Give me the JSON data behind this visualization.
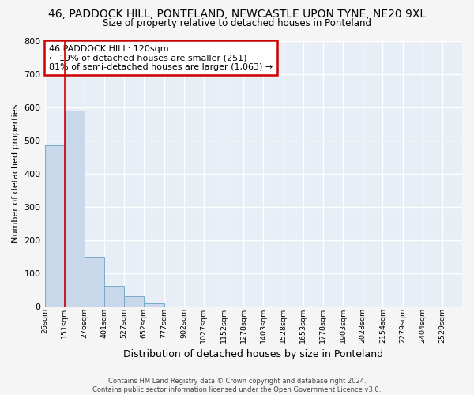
{
  "title_line1": "46, PADDOCK HILL, PONTELAND, NEWCASTLE UPON TYNE, NE20 9XL",
  "title_line2": "Size of property relative to detached houses in Ponteland",
  "xlabel": "Distribution of detached houses by size in Ponteland",
  "ylabel": "Number of detached properties",
  "bar_color": "#c8d8ea",
  "bar_edge_color": "#7aaac8",
  "background_color": "#e8eef6",
  "grid_color": "#ffffff",
  "fig_bg_color": "#f5f5f5",
  "categories": [
    "26sqm",
    "151sqm",
    "276sqm",
    "401sqm",
    "527sqm",
    "652sqm",
    "777sqm",
    "902sqm",
    "1027sqm",
    "1152sqm",
    "1278sqm",
    "1403sqm",
    "1528sqm",
    "1653sqm",
    "1778sqm",
    "1903sqm",
    "2028sqm",
    "2154sqm",
    "2279sqm",
    "2404sqm",
    "2529sqm"
  ],
  "values": [
    485,
    590,
    150,
    62,
    30,
    10,
    0,
    0,
    0,
    0,
    0,
    0,
    0,
    0,
    0,
    0,
    0,
    0,
    0,
    0,
    0
  ],
  "ylim": [
    0,
    800
  ],
  "yticks": [
    0,
    100,
    200,
    300,
    400,
    500,
    600,
    700,
    800
  ],
  "property_line_x": 1,
  "property_line_color": "#cc0000",
  "annotation_text": "46 PADDOCK HILL: 120sqm\n← 19% of detached houses are smaller (251)\n81% of semi-detached houses are larger (1,063) →",
  "annotation_box_color": "#ffffff",
  "annotation_border_color": "#cc0000",
  "footer_line1": "Contains HM Land Registry data © Crown copyright and database right 2024.",
  "footer_line2": "Contains public sector information licensed under the Open Government Licence v3.0."
}
